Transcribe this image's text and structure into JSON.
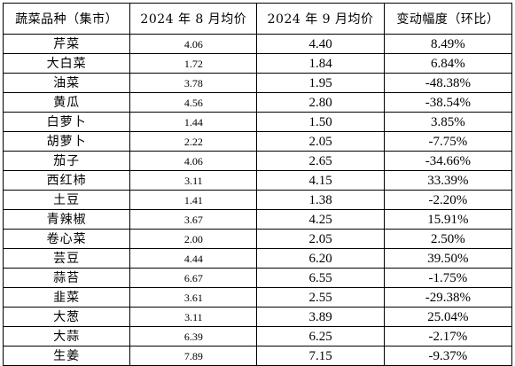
{
  "table": {
    "headers": {
      "name": "蔬菜品种（集市）",
      "aug": "2024 年 8 月均价",
      "sep": "2024 年 9 月均价",
      "change": "变动幅度（环比）"
    },
    "rows": [
      {
        "name": "芹菜",
        "aug": "4.06",
        "sep": "4.40",
        "change": "8.49%"
      },
      {
        "name": "大白菜",
        "aug": "1.72",
        "sep": "1.84",
        "change": "6.84%"
      },
      {
        "name": "油菜",
        "aug": "3.78",
        "sep": "1.95",
        "change": "-48.38%"
      },
      {
        "name": "黄瓜",
        "aug": "4.56",
        "sep": "2.80",
        "change": "-38.54%"
      },
      {
        "name": "白萝卜",
        "aug": "1.44",
        "sep": "1.50",
        "change": "3.85%"
      },
      {
        "name": "胡萝卜",
        "aug": "2.22",
        "sep": "2.05",
        "change": "-7.75%"
      },
      {
        "name": "茄子",
        "aug": "4.06",
        "sep": "2.65",
        "change": "-34.66%"
      },
      {
        "name": "西红柿",
        "aug": "3.11",
        "sep": "4.15",
        "change": "33.39%"
      },
      {
        "name": "土豆",
        "aug": "1.41",
        "sep": "1.38",
        "change": "-2.20%"
      },
      {
        "name": "青辣椒",
        "aug": "3.67",
        "sep": "4.25",
        "change": "15.91%"
      },
      {
        "name": "卷心菜",
        "aug": "2.00",
        "sep": "2.05",
        "change": "2.50%"
      },
      {
        "name": "芸豆",
        "aug": "4.44",
        "sep": "6.20",
        "change": "39.50%"
      },
      {
        "name": "蒜苔",
        "aug": "6.67",
        "sep": "6.55",
        "change": "-1.75%"
      },
      {
        "name": "韭菜",
        "aug": "3.61",
        "sep": "2.55",
        "change": "-29.38%"
      },
      {
        "name": "大葱",
        "aug": "3.11",
        "sep": "3.89",
        "change": "25.04%"
      },
      {
        "name": "大蒜",
        "aug": "6.39",
        "sep": "6.25",
        "change": "-2.17%"
      },
      {
        "name": "生姜",
        "aug": "7.89",
        "sep": "7.15",
        "change": "-9.37%"
      }
    ]
  }
}
